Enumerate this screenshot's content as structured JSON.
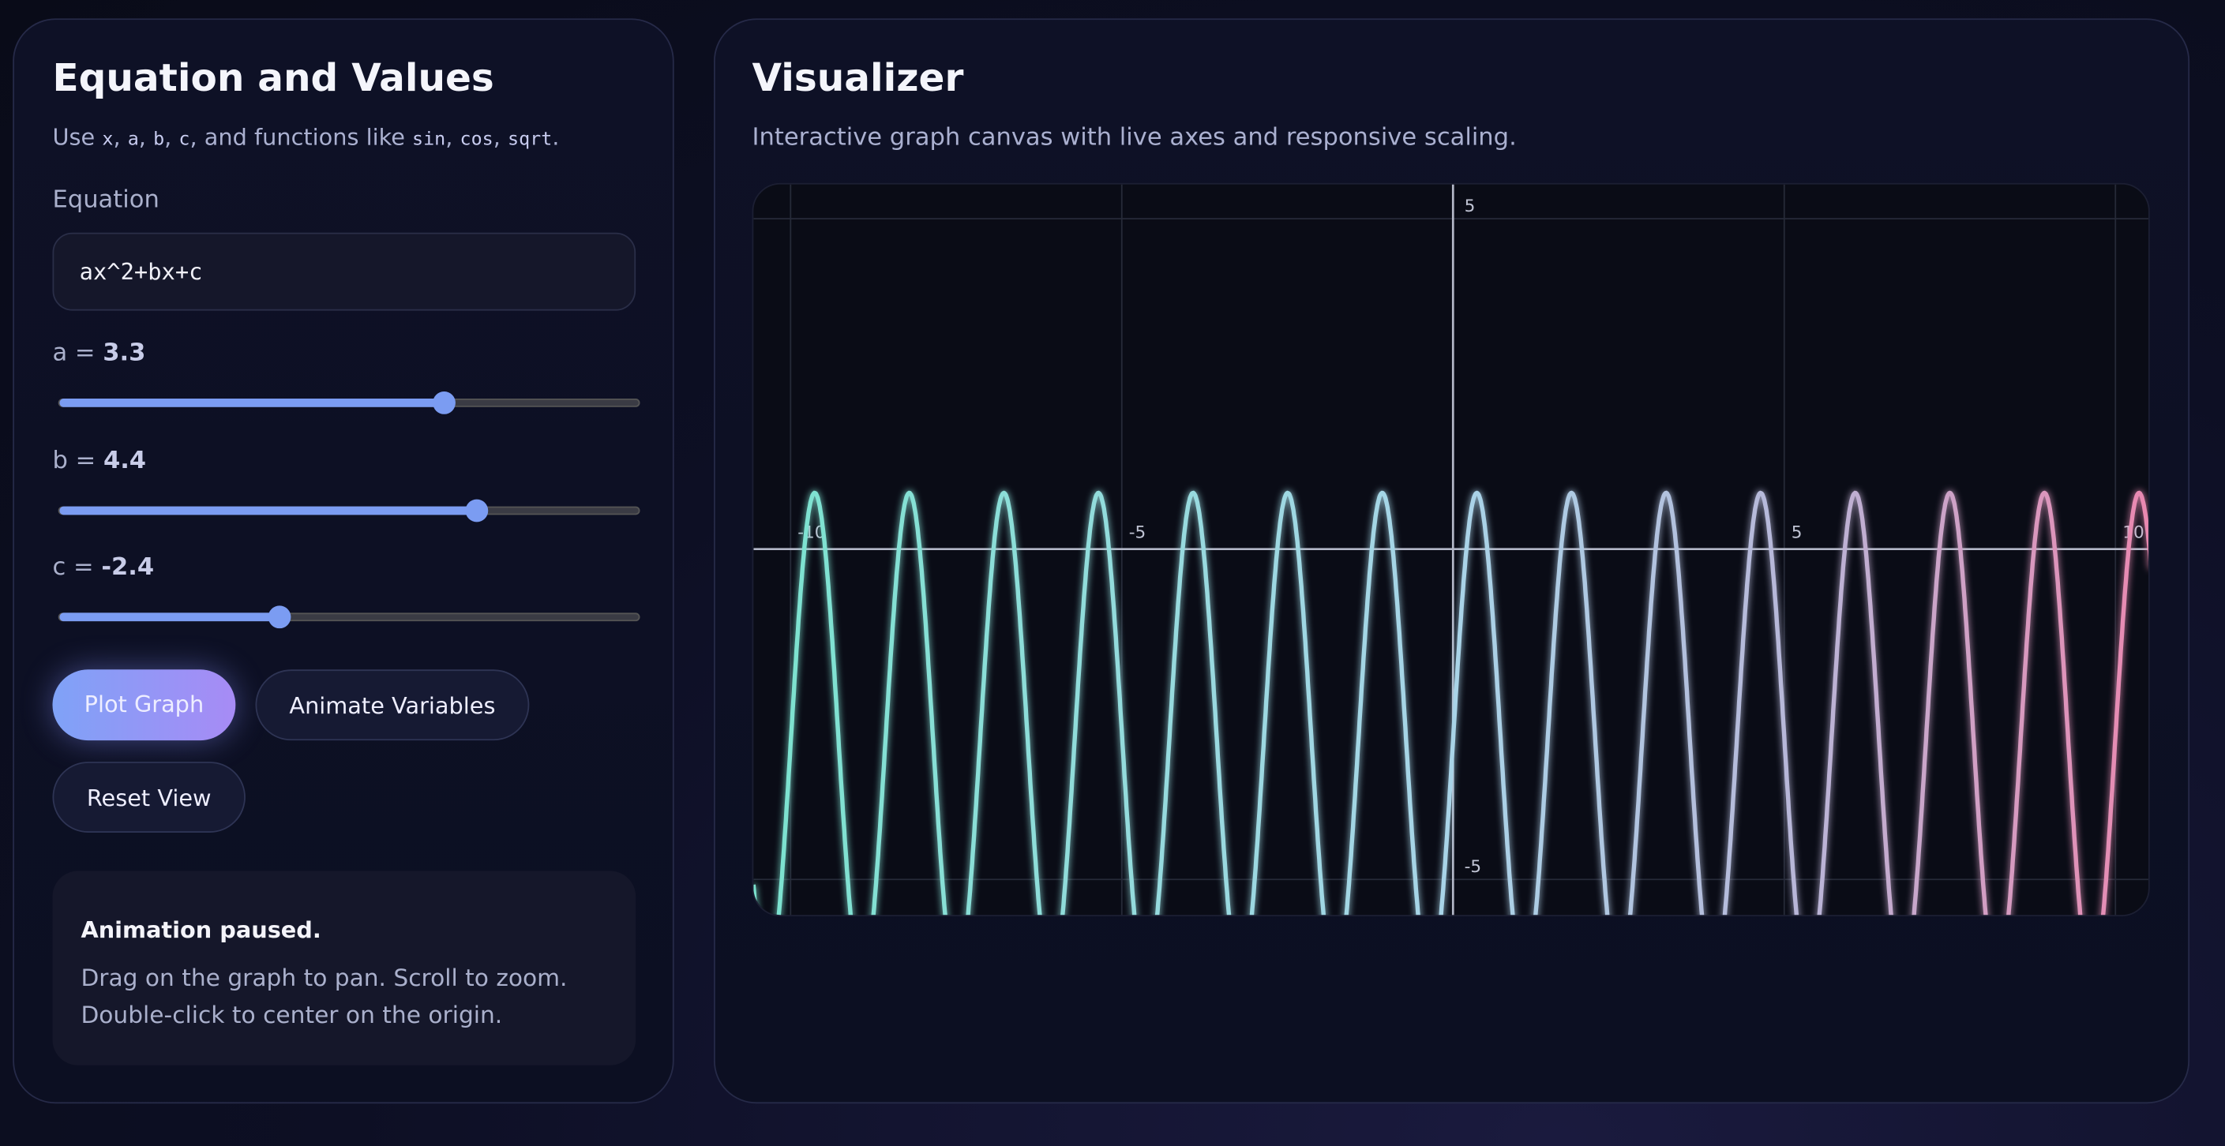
{
  "left_panel": {
    "title": "Equation and Values",
    "hint": [
      "Use ",
      "x",
      ", ",
      "a",
      ", ",
      "b",
      ", ",
      "c",
      ", and functions like ",
      "sin",
      ", ",
      "cos",
      ", ",
      "sqrt",
      "."
    ],
    "equation_label": "Equation",
    "equation_value": "ax^2+bx+c",
    "slider_range": [
      -10,
      10
    ],
    "sliders": [
      {
        "label": "a =",
        "value": 3.3
      },
      {
        "label": "b =",
        "value": 4.4
      },
      {
        "label": "c =",
        "value": -2.4
      }
    ],
    "buttons": [
      "Plot Graph",
      "Animate Variables",
      "Reset View"
    ],
    "status": {
      "title": "Animation paused.",
      "text": "Drag on the graph to pan. Scroll to zoom. Double-click to center on the origin."
    }
  },
  "right_panel": {
    "title": "Visualizer",
    "subtitle": "Interactive graph canvas with live axes and responsive scaling.",
    "graph": {
      "xlim": [
        -10.56,
        10.54
      ],
      "ylim": [
        -5.58,
        5.52
      ],
      "xticks": [
        -10,
        -5,
        5,
        10
      ],
      "yticks": [
        5,
        -5
      ]
    }
  }
}
